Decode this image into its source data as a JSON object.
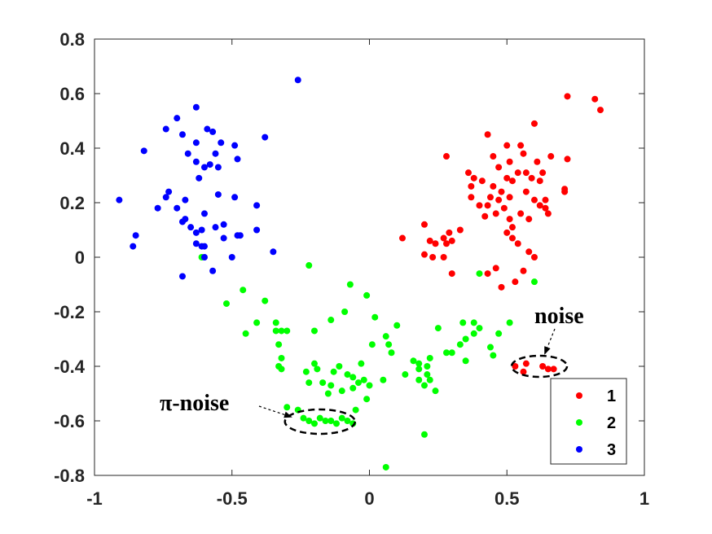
{
  "chart_data": {
    "type": "scatter",
    "title": "",
    "xlabel": "",
    "ylabel": "",
    "xlim": [
      -1,
      1
    ],
    "ylim": [
      -0.8,
      0.8
    ],
    "xticks": [
      "-1",
      "-0.5",
      "0",
      "0.5",
      "1"
    ],
    "yticks": [
      "0.8",
      "0.6",
      "0.4",
      "0.2",
      "0",
      "-0.2",
      "-0.4",
      "-0.6",
      "-0.8"
    ],
    "grid": false,
    "legend_position": "bottom-right",
    "series": [
      {
        "name": "1",
        "color": "#ff0000",
        "points": [
          [
            0.72,
            0.59
          ],
          [
            0.82,
            0.58
          ],
          [
            0.84,
            0.54
          ],
          [
            0.6,
            0.49
          ],
          [
            0.43,
            0.45
          ],
          [
            0.5,
            0.41
          ],
          [
            0.55,
            0.41
          ],
          [
            0.45,
            0.37
          ],
          [
            0.56,
            0.38
          ],
          [
            0.66,
            0.37
          ],
          [
            0.28,
            0.37
          ],
          [
            0.51,
            0.35
          ],
          [
            0.61,
            0.35
          ],
          [
            0.72,
            0.36
          ],
          [
            0.47,
            0.33
          ],
          [
            0.36,
            0.31
          ],
          [
            0.54,
            0.31
          ],
          [
            0.57,
            0.31
          ],
          [
            0.63,
            0.31
          ],
          [
            0.38,
            0.29
          ],
          [
            0.41,
            0.28
          ],
          [
            0.5,
            0.29
          ],
          [
            0.52,
            0.28
          ],
          [
            0.59,
            0.29
          ],
          [
            0.62,
            0.28
          ],
          [
            0.37,
            0.26
          ],
          [
            0.45,
            0.26
          ],
          [
            0.48,
            0.24
          ],
          [
            0.57,
            0.24
          ],
          [
            0.71,
            0.25
          ],
          [
            0.37,
            0.22
          ],
          [
            0.44,
            0.22
          ],
          [
            0.47,
            0.21
          ],
          [
            0.51,
            0.22
          ],
          [
            0.6,
            0.21
          ],
          [
            0.71,
            0.24
          ],
          [
            0.4,
            0.19
          ],
          [
            0.43,
            0.19
          ],
          [
            0.49,
            0.18
          ],
          [
            0.62,
            0.19
          ],
          [
            0.64,
            0.21
          ],
          [
            0.64,
            0.18
          ],
          [
            0.42,
            0.15
          ],
          [
            0.46,
            0.16
          ],
          [
            0.65,
            0.16
          ],
          [
            0.2,
            0.12
          ],
          [
            0.33,
            0.1
          ],
          [
            0.51,
            0.14
          ],
          [
            0.55,
            0.16
          ],
          [
            0.58,
            0.14
          ],
          [
            0.29,
            0.09
          ],
          [
            0.22,
            0.06
          ],
          [
            0.24,
            0.05
          ],
          [
            0.27,
            0.07
          ],
          [
            0.28,
            0.05
          ],
          [
            0.3,
            0.06
          ],
          [
            0.12,
            0.07
          ],
          [
            0.5,
            0.09
          ],
          [
            0.52,
            0.11
          ],
          [
            0.52,
            0.07
          ],
          [
            0.54,
            0.05
          ],
          [
            0.2,
            0.01
          ],
          [
            0.23,
            0.0
          ],
          [
            0.27,
            0.0
          ],
          [
            0.3,
            -0.06
          ],
          [
            0.43,
            -0.06
          ],
          [
            0.48,
            -0.11
          ],
          [
            0.53,
            -0.09
          ],
          [
            0.56,
            -0.05
          ],
          [
            0.6,
            0.0
          ],
          [
            0.58,
            0.02
          ],
          [
            0.46,
            -0.04
          ],
          [
            0.53,
            -0.4
          ],
          [
            0.56,
            -0.42
          ],
          [
            0.57,
            -0.39
          ],
          [
            0.63,
            -0.4
          ],
          [
            0.65,
            -0.41
          ],
          [
            0.67,
            -0.41
          ]
        ]
      },
      {
        "name": "2",
        "color": "#00ff00",
        "points": [
          [
            -0.61,
            0.0
          ],
          [
            -0.22,
            -0.03
          ],
          [
            -0.46,
            -0.12
          ],
          [
            -0.52,
            -0.17
          ],
          [
            -0.38,
            -0.16
          ],
          [
            -0.07,
            -0.1
          ],
          [
            -0.01,
            -0.14
          ],
          [
            -0.45,
            -0.28
          ],
          [
            -0.41,
            -0.24
          ],
          [
            -0.34,
            -0.24
          ],
          [
            -0.34,
            -0.27
          ],
          [
            -0.32,
            -0.27
          ],
          [
            -0.3,
            -0.27
          ],
          [
            -0.2,
            -0.27
          ],
          [
            -0.14,
            -0.23
          ],
          [
            -0.09,
            -0.2
          ],
          [
            0.02,
            -0.22
          ],
          [
            -0.33,
            -0.32
          ],
          [
            -0.32,
            -0.37
          ],
          [
            -0.33,
            -0.4
          ],
          [
            -0.32,
            -0.41
          ],
          [
            -0.19,
            -0.41
          ],
          [
            -0.2,
            -0.39
          ],
          [
            -0.13,
            -0.42
          ],
          [
            -0.11,
            -0.4
          ],
          [
            -0.08,
            -0.43
          ],
          [
            -0.06,
            -0.44
          ],
          [
            -0.03,
            -0.39
          ],
          [
            -0.02,
            -0.45
          ],
          [
            0.01,
            -0.32
          ],
          [
            0.06,
            -0.29
          ],
          [
            0.1,
            -0.25
          ],
          [
            0.07,
            -0.32
          ],
          [
            0.25,
            -0.26
          ],
          [
            0.3,
            -0.35
          ],
          [
            0.34,
            -0.24
          ],
          [
            0.38,
            -0.24
          ],
          [
            0.44,
            -0.33
          ],
          [
            0.47,
            -0.28
          ],
          [
            0.51,
            -0.24
          ],
          [
            -0.23,
            -0.42
          ],
          [
            -0.22,
            -0.46
          ],
          [
            -0.17,
            -0.46
          ],
          [
            -0.14,
            -0.47
          ],
          [
            -0.15,
            -0.5
          ],
          [
            -0.1,
            -0.49
          ],
          [
            -0.06,
            -0.48
          ],
          [
            -0.04,
            -0.46
          ],
          [
            0.0,
            -0.47
          ],
          [
            -0.01,
            -0.52
          ],
          [
            0.05,
            -0.45
          ],
          [
            0.08,
            -0.35
          ],
          [
            0.13,
            -0.43
          ],
          [
            0.16,
            -0.38
          ],
          [
            0.18,
            -0.39
          ],
          [
            0.18,
            -0.41
          ],
          [
            0.21,
            -0.4
          ],
          [
            0.22,
            -0.37
          ],
          [
            0.21,
            -0.43
          ],
          [
            0.2,
            -0.47
          ],
          [
            0.22,
            -0.45
          ],
          [
            0.24,
            -0.49
          ],
          [
            0.18,
            -0.45
          ],
          [
            0.28,
            -0.35
          ],
          [
            0.33,
            -0.32
          ],
          [
            0.35,
            -0.3
          ],
          [
            0.38,
            -0.28
          ],
          [
            0.35,
            -0.38
          ],
          [
            0.4,
            -0.26
          ],
          [
            0.45,
            -0.36
          ],
          [
            0.6,
            -0.09
          ],
          [
            0.4,
            -0.06
          ],
          [
            -0.3,
            -0.55
          ],
          [
            -0.26,
            -0.56
          ],
          [
            -0.24,
            -0.59
          ],
          [
            -0.22,
            -0.6
          ],
          [
            -0.2,
            -0.61
          ],
          [
            -0.18,
            -0.59
          ],
          [
            -0.16,
            -0.6
          ],
          [
            -0.14,
            -0.6
          ],
          [
            -0.12,
            -0.61
          ],
          [
            -0.1,
            -0.59
          ],
          [
            -0.08,
            -0.6
          ],
          [
            -0.06,
            -0.61
          ],
          [
            -0.05,
            -0.56
          ],
          [
            0.2,
            -0.65
          ],
          [
            0.06,
            -0.77
          ]
        ]
      },
      {
        "name": "3",
        "color": "#0000ff",
        "points": [
          [
            -0.26,
            0.65
          ],
          [
            -0.63,
            0.55
          ],
          [
            -0.7,
            0.51
          ],
          [
            -0.74,
            0.47
          ],
          [
            -0.59,
            0.47
          ],
          [
            -0.57,
            0.46
          ],
          [
            -0.68,
            0.45
          ],
          [
            -0.63,
            0.42
          ],
          [
            -0.54,
            0.42
          ],
          [
            -0.66,
            0.38
          ],
          [
            -0.56,
            0.38
          ],
          [
            -0.49,
            0.41
          ],
          [
            -0.38,
            0.44
          ],
          [
            -0.82,
            0.39
          ],
          [
            -0.63,
            0.35
          ],
          [
            -0.6,
            0.33
          ],
          [
            -0.58,
            0.34
          ],
          [
            -0.55,
            0.33
          ],
          [
            -0.48,
            0.36
          ],
          [
            -0.62,
            0.29
          ],
          [
            -0.73,
            0.24
          ],
          [
            -0.74,
            0.22
          ],
          [
            -0.67,
            0.21
          ],
          [
            -0.55,
            0.23
          ],
          [
            -0.49,
            0.22
          ],
          [
            -0.41,
            0.19
          ],
          [
            -0.91,
            0.21
          ],
          [
            -0.7,
            0.18
          ],
          [
            -0.77,
            0.18
          ],
          [
            -0.67,
            0.14
          ],
          [
            -0.6,
            0.16
          ],
          [
            -0.53,
            0.12
          ],
          [
            -0.41,
            0.1
          ],
          [
            -0.85,
            0.08
          ],
          [
            -0.68,
            0.13
          ],
          [
            -0.65,
            0.11
          ],
          [
            -0.63,
            0.09
          ],
          [
            -0.61,
            0.1
          ],
          [
            -0.56,
            0.11
          ],
          [
            -0.48,
            0.08
          ],
          [
            -0.86,
            0.04
          ],
          [
            -0.63,
            0.05
          ],
          [
            -0.6,
            0.04
          ],
          [
            -0.53,
            0.07
          ],
          [
            -0.47,
            0.08
          ],
          [
            -0.35,
            0.02
          ],
          [
            -0.6,
            0.0
          ],
          [
            -0.57,
            -0.05
          ],
          [
            -0.68,
            -0.07
          ],
          [
            -0.5,
            0.0
          ],
          [
            -0.61,
            0.04
          ]
        ]
      }
    ],
    "annotations": [
      {
        "text": "noise",
        "target": [
          0.6,
          -0.4
        ]
      },
      {
        "text": "π-noise",
        "target": [
          -0.18,
          -0.6
        ]
      }
    ]
  }
}
